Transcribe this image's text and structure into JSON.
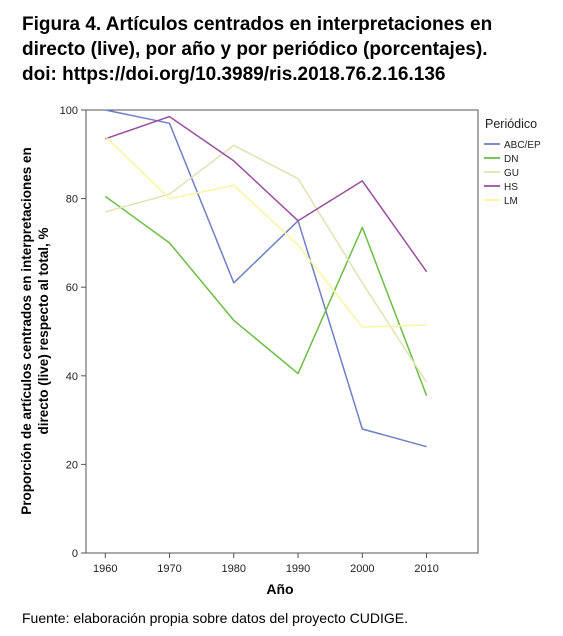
{
  "caption": {
    "line1": "Figura 4. Artículos centrados en interpretaciones en",
    "line2": "directo (live), por año y por periódico (porcentajes).",
    "line3": "doi: https://doi.org/10.3989/ris.2018.76.2.16.136"
  },
  "source_note": "Fuente: elaboración propia sobre datos del proyecto CUDIGE.",
  "chart_data": {
    "type": "line",
    "xlabel": "Año",
    "ylabel_line1": "Proporción de artículos centrados en interpretaciones en",
    "ylabel_line2": "directo (live) respecto al total, %",
    "x": [
      1960,
      1970,
      1980,
      1990,
      2000,
      2010
    ],
    "xlim": [
      1957,
      2018
    ],
    "ylim": [
      0,
      100
    ],
    "y_ticks": [
      0,
      20,
      40,
      60,
      80,
      100
    ],
    "grid": false,
    "legend_title": "Periódico",
    "legend_position": "right",
    "series": [
      {
        "name": "ABC/EP",
        "color": "#6f7fc6",
        "values": [
          100,
          97,
          61,
          75,
          28,
          24
        ]
      },
      {
        "name": "DN",
        "color": "#6cbd45",
        "values": [
          80.5,
          70,
          52.5,
          40.5,
          73.5,
          35.5
        ]
      },
      {
        "name": "GU",
        "color": "#e2e1b4",
        "values": [
          77,
          81,
          92,
          84.5,
          61,
          38.5
        ]
      },
      {
        "name": "HS",
        "color": "#9a4e9e",
        "values": [
          93.5,
          98.5,
          88.5,
          75,
          84,
          63.5
        ]
      },
      {
        "name": "LM",
        "color": "#faf5a0",
        "values": [
          94,
          80,
          83,
          69.5,
          51,
          51.5
        ]
      }
    ]
  }
}
